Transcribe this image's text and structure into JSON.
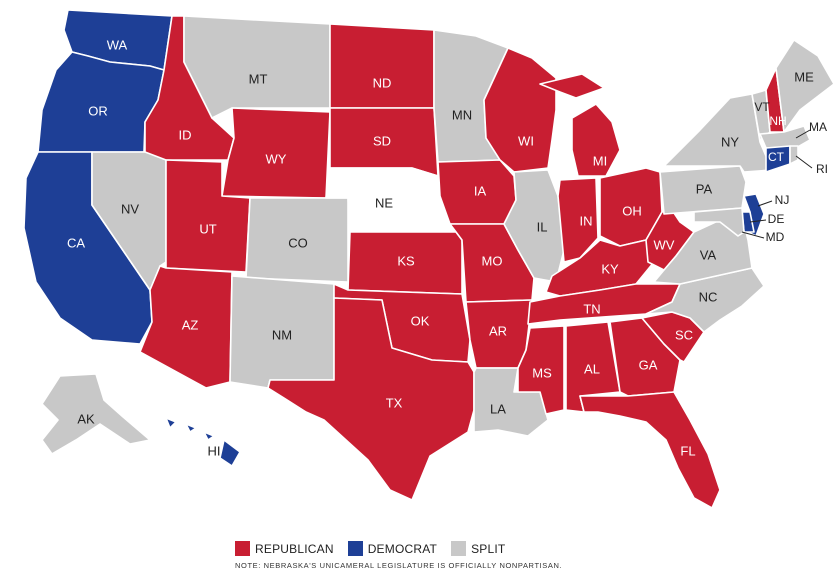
{
  "colors": {
    "republican": "#c81e32",
    "democrat": "#1e3f96",
    "split": "#c8c8c8"
  },
  "states": [
    {
      "abbr": "WA",
      "party": "democrat"
    },
    {
      "abbr": "OR",
      "party": "democrat"
    },
    {
      "abbr": "CA",
      "party": "democrat"
    },
    {
      "abbr": "NV",
      "party": "split"
    },
    {
      "abbr": "ID",
      "party": "republican"
    },
    {
      "abbr": "MT",
      "party": "split"
    },
    {
      "abbr": "WY",
      "party": "republican"
    },
    {
      "abbr": "UT",
      "party": "republican"
    },
    {
      "abbr": "CO",
      "party": "split"
    },
    {
      "abbr": "AZ",
      "party": "republican"
    },
    {
      "abbr": "NM",
      "party": "split"
    },
    {
      "abbr": "ND",
      "party": "republican"
    },
    {
      "abbr": "SD",
      "party": "republican"
    },
    {
      "abbr": "NE",
      "party": "nonpartisan"
    },
    {
      "abbr": "KS",
      "party": "republican"
    },
    {
      "abbr": "OK",
      "party": "republican"
    },
    {
      "abbr": "TX",
      "party": "republican"
    },
    {
      "abbr": "MN",
      "party": "split"
    },
    {
      "abbr": "IA",
      "party": "republican"
    },
    {
      "abbr": "MO",
      "party": "republican"
    },
    {
      "abbr": "AR",
      "party": "republican"
    },
    {
      "abbr": "LA",
      "party": "split"
    },
    {
      "abbr": "WI",
      "party": "republican"
    },
    {
      "abbr": "IL",
      "party": "split"
    },
    {
      "abbr": "MI",
      "party": "republican"
    },
    {
      "abbr": "IN",
      "party": "republican"
    },
    {
      "abbr": "OH",
      "party": "republican"
    },
    {
      "abbr": "KY",
      "party": "republican"
    },
    {
      "abbr": "TN",
      "party": "republican"
    },
    {
      "abbr": "MS",
      "party": "republican"
    },
    {
      "abbr": "AL",
      "party": "republican"
    },
    {
      "abbr": "GA",
      "party": "republican"
    },
    {
      "abbr": "FL",
      "party": "republican"
    },
    {
      "abbr": "SC",
      "party": "republican"
    },
    {
      "abbr": "NC",
      "party": "split"
    },
    {
      "abbr": "VA",
      "party": "split"
    },
    {
      "abbr": "WV",
      "party": "republican"
    },
    {
      "abbr": "PA",
      "party": "split"
    },
    {
      "abbr": "NY",
      "party": "split"
    },
    {
      "abbr": "VT",
      "party": "split"
    },
    {
      "abbr": "NH",
      "party": "republican"
    },
    {
      "abbr": "ME",
      "party": "split"
    },
    {
      "abbr": "MA",
      "party": "split"
    },
    {
      "abbr": "RI",
      "party": "split"
    },
    {
      "abbr": "CT",
      "party": "democrat"
    },
    {
      "abbr": "NJ",
      "party": "democrat"
    },
    {
      "abbr": "DE",
      "party": "democrat"
    },
    {
      "abbr": "MD",
      "party": "split"
    },
    {
      "abbr": "AK",
      "party": "split"
    },
    {
      "abbr": "HI",
      "party": "democrat"
    }
  ],
  "legend": {
    "republican_label": "REPUBLICAN",
    "democrat_label": "DEMOCRAT",
    "split_label": "SPLIT"
  },
  "note": "NOTE: NEBRASKA'S UNICAMERAL LEGISLATURE IS OFFICIALLY NONPARTISAN."
}
